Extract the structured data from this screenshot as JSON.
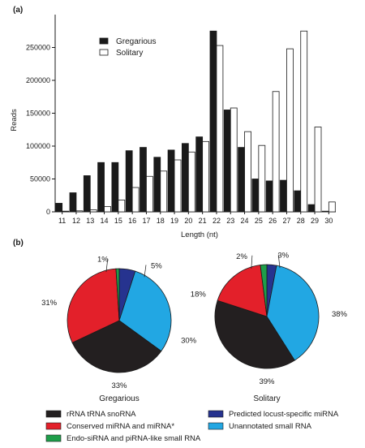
{
  "chart_data": [
    {
      "panel": "(a)",
      "type": "bar",
      "xlabel": "Length (nt)",
      "ylabel": "Reads",
      "ylim": [
        0,
        300000
      ],
      "yticks": [
        "0",
        "50000",
        "100000",
        "150000",
        "200000",
        "250000"
      ],
      "categories": [
        "11",
        "12",
        "13",
        "14",
        "15",
        "16",
        "17",
        "18",
        "19",
        "20",
        "21",
        "22",
        "23",
        "24",
        "25",
        "26",
        "27",
        "28",
        "29",
        "30"
      ],
      "series": [
        {
          "name": "Gregarious",
          "color": "#1a1a1a",
          "values": [
            13000,
            29000,
            55000,
            75000,
            75000,
            93000,
            98000,
            83000,
            94000,
            104000,
            114000,
            275000,
            155000,
            98000,
            50000,
            47000,
            48000,
            32000,
            11000,
            1000
          ]
        },
        {
          "name": "Solitary",
          "color": "#ffffff",
          "values": [
            1000,
            1500,
            3000,
            8000,
            18000,
            37000,
            54000,
            62000,
            79000,
            91000,
            107000,
            253000,
            158000,
            122000,
            101000,
            183000,
            248000,
            275000,
            129000,
            15000
          ]
        }
      ],
      "grid": false,
      "legend_position": "top-left"
    },
    {
      "panel": "(b)",
      "type": "pie",
      "pies": [
        {
          "title": "Gregarious",
          "slices": [
            {
              "label": "rRNA tRNA snoRNA",
              "value": 33,
              "text": "33%"
            },
            {
              "label": "Conserved miRNA and miRNA*",
              "value": 31,
              "text": "31%"
            },
            {
              "label": "Endo-siRNA and piRNA-like small RNA",
              "value": 1,
              "text": "1%"
            },
            {
              "label": "Predicted locust-specific miRNA",
              "value": 5,
              "text": "5%"
            },
            {
              "label": "Unannotated small RNA",
              "value": 30,
              "text": "30%"
            }
          ]
        },
        {
          "title": "Solitary",
          "slices": [
            {
              "label": "rRNA tRNA snoRNA",
              "value": 39,
              "text": "39%"
            },
            {
              "label": "Conserved miRNA and miRNA*",
              "value": 18,
              "text": "18%"
            },
            {
              "label": "Endo-siRNA and piRNA-like small RNA",
              "value": 2,
              "text": "2%"
            },
            {
              "label": "Predicted locust-specific miRNA",
              "value": 3,
              "text": "3%"
            },
            {
              "label": "Unannotated small RNA",
              "value": 38,
              "text": "38%"
            }
          ]
        }
      ],
      "legend": [
        {
          "label": "rRNA tRNA snoRNA",
          "color": "#231f20"
        },
        {
          "label": "Conserved miRNA and miRNA*",
          "color": "#e3202a"
        },
        {
          "label": "Endo-siRNA and piRNA-like small RNA",
          "color": "#1e9e4a"
        },
        {
          "label": "Predicted locust-specific miRNA",
          "color": "#26338f"
        },
        {
          "label": "Unannotated small RNA",
          "color": "#22a7e3"
        }
      ]
    }
  ]
}
